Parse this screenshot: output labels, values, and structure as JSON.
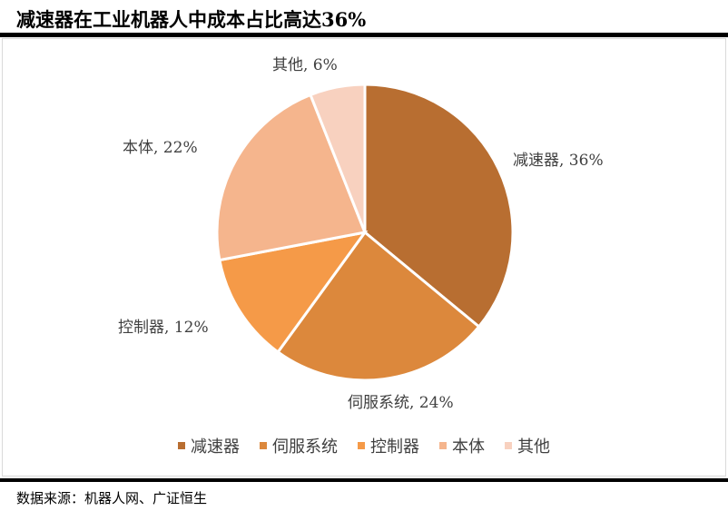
{
  "title": "减速器在工业机器人中成本占比高达36%",
  "source": "数据来源：机器人网、广证恒生",
  "chart_data": {
    "type": "pie",
    "categories": [
      "减速器",
      "伺服系统",
      "控制器",
      "本体",
      "其他"
    ],
    "values": [
      36,
      24,
      12,
      22,
      6
    ],
    "data_labels": [
      "减速器, 36%",
      "伺服系统, 24%",
      "控制器, 12%",
      "本体, 22%",
      "其他, 6%"
    ],
    "colors": [
      "#B86E31",
      "#DC883C",
      "#F59A48",
      "#F5B58D",
      "#F8D1BF"
    ],
    "start_angle": "12 o'clock",
    "direction": "clockwise",
    "legend": "bottom"
  }
}
